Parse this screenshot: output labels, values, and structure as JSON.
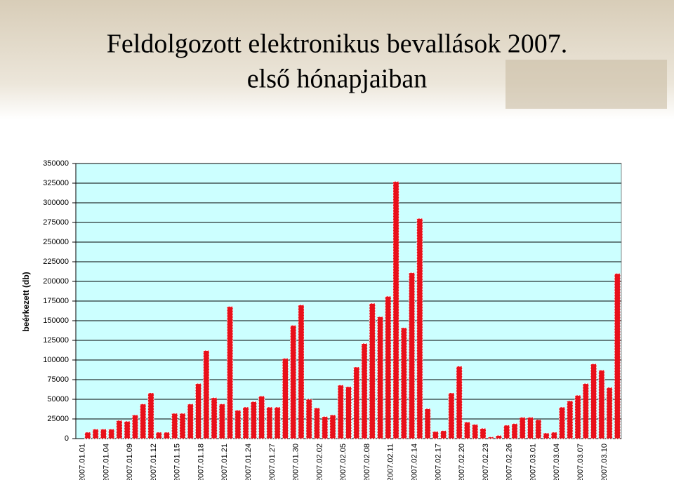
{
  "chart_data": {
    "type": "bar",
    "title": "Feldolgozott elektronikus bevallások 2007.",
    "subtitle": "első hónapjaiban",
    "y_label": "beérkezett (db)",
    "categories": [
      "2007.01.01",
      null,
      null,
      "2007.01.04",
      null,
      null,
      "2007.01.09",
      null,
      null,
      "2007.01.12",
      null,
      null,
      "2007.01.15",
      null,
      null,
      "2007.01.18",
      null,
      null,
      "2007.01.21",
      null,
      null,
      "2007.01.24",
      null,
      null,
      "2007.01.27",
      null,
      null,
      "2007.01.30",
      null,
      null,
      "2007.02.02",
      null,
      null,
      "2007.02.05",
      null,
      null,
      "2007.02.08",
      null,
      null,
      "2007.02.11",
      null,
      null,
      "2007.02.14",
      null,
      null,
      "2007.02.17",
      null,
      null,
      "2007.02.20",
      null,
      null,
      "2007.02.23",
      null,
      null,
      "2007.02.26",
      null,
      null,
      "2007.03.01",
      null,
      null,
      "2007.03.04",
      null,
      null,
      "2007.03.07",
      null,
      null,
      "2007.03.10",
      null,
      null
    ],
    "values": [
      0,
      8000,
      12000,
      12000,
      12000,
      23000,
      22000,
      30000,
      44000,
      58000,
      8000,
      8000,
      32000,
      32000,
      44000,
      70000,
      112000,
      52000,
      44000,
      168000,
      36000,
      40000,
      47000,
      54000,
      40000,
      40000,
      102000,
      144000,
      170000,
      50000,
      39000,
      28000,
      30000,
      68000,
      66000,
      91000,
      121000,
      172000,
      155000,
      181000,
      327000,
      141000,
      211000,
      280000,
      38000,
      9000,
      10000,
      58000,
      92000,
      21000,
      18000,
      13000,
      2000,
      4000,
      17000,
      19000,
      27000,
      27000,
      24000,
      7000,
      8000,
      40000,
      48000,
      55000,
      70000,
      95000,
      87000,
      65000,
      210000
    ],
    "color": "#e8101a",
    "ylim": [
      0,
      350000
    ],
    "yticks": [
      0,
      25000,
      50000,
      75000,
      100000,
      125000,
      150000,
      175000,
      200000,
      225000,
      250000,
      275000,
      300000,
      325000,
      350000
    ],
    "grid": true
  }
}
